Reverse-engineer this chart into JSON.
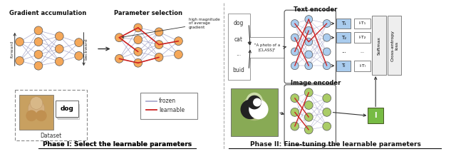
{
  "title_left": "Gradient accumulation",
  "title_right_left": "Parameter selection",
  "phase1_label": "Phase I: Select the learnable parameters",
  "phase2_label": "Phase II: Fine-tuning the learnable parameters",
  "text_encoder_label": "Text encoder",
  "image_encoder_label": "Image encoder",
  "legend_frozen": "frozen",
  "legend_learnable": "learnable",
  "gradient_label_high": "high magnitude\nof average\ngradient",
  "forward_label": "forward",
  "backward_label": "backward",
  "dataset_label": "Dataset",
  "dog_label": "dog",
  "cat_label": "cat",
  "dots_label": "...",
  "bird_label": "buid",
  "class_text": "\"A photo of a\n[CLASS]\"",
  "t1_label": "T₁",
  "t2_label": "T₂",
  "dots": "...",
  "tl_label": "Tₗ",
  "it1_label": "I·T₁",
  "it2_label": "I·T₂",
  "itl_label": "I·Tₗ",
  "i_label": "I",
  "softmax_label": "Softmax",
  "crossentropy_label": "Cross-entropy\nloss",
  "node_color_orange": "#F5A85A",
  "node_color_green": "#AACC66",
  "node_color_blue": "#AACCEE",
  "frozen_color": "#AAAACC",
  "learnable_color": "#CC2222",
  "bg_color": "#FFFFFF",
  "green_box_color": "#77BB44",
  "text_box_color": "#AACCEE"
}
